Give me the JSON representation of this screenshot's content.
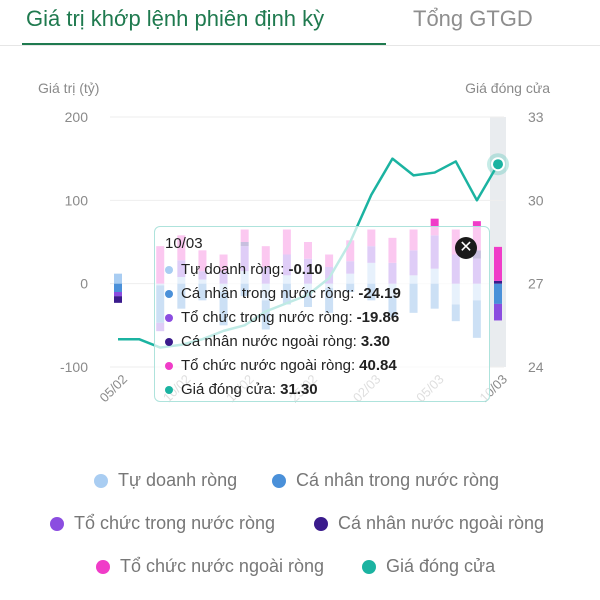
{
  "tabs": [
    {
      "label": "Giá trị khớp lệnh phiên định kỳ",
      "active": true
    },
    {
      "label": "Tổng GTGD",
      "active": false
    }
  ],
  "chart_data": {
    "type": "bar",
    "left_axis_label": "Giá trị (tỷ)",
    "right_axis_label": "Giá đóng cửa",
    "left_ylim": [
      -100,
      200
    ],
    "left_ticks": [
      -100,
      0,
      100,
      200
    ],
    "right_ylim": [
      24,
      33
    ],
    "right_ticks": [
      24,
      27,
      30,
      33
    ],
    "x_tick_labels": [
      "05/02",
      "10/02",
      "13/02",
      "25/02",
      "02/03",
      "05/03",
      "10/03"
    ],
    "x_tick_index": [
      0,
      3,
      6,
      9,
      12,
      15,
      18
    ],
    "n_points": 19,
    "highlight_index": 18,
    "series": [
      {
        "name": "Tự doanh ròng",
        "color": "#a9cdf2",
        "values": [
          12,
          0,
          -2,
          8,
          5,
          -10,
          15,
          -20,
          10,
          -8,
          -5,
          12,
          25,
          -15,
          10,
          18,
          -25,
          -20,
          -0.1
        ]
      },
      {
        "name": "Cá nhân trong nước ròng",
        "color": "#4a90d9",
        "values": [
          -10,
          0,
          -45,
          -30,
          -20,
          -40,
          -15,
          -35,
          -25,
          -20,
          -30,
          -10,
          -20,
          -25,
          -35,
          -30,
          -20,
          -45,
          -24.19
        ]
      },
      {
        "name": "Tổ chức trong nước ròng",
        "color": "#8b4de0",
        "values": [
          -5,
          0,
          -10,
          20,
          10,
          15,
          30,
          20,
          25,
          30,
          20,
          15,
          20,
          25,
          30,
          40,
          35,
          30,
          -19.86
        ]
      },
      {
        "name": "Cá nhân nước ngoài ròng",
        "color": "#3a1b8c",
        "values": [
          -8,
          0,
          0,
          0,
          0,
          0,
          5,
          0,
          0,
          0,
          0,
          0,
          0,
          0,
          0,
          0,
          0,
          10,
          3.3
        ]
      },
      {
        "name": "Tổ chức nước ngoài ròng",
        "color": "#f03cc8",
        "values": [
          0,
          0,
          45,
          30,
          25,
          20,
          15,
          25,
          30,
          20,
          15,
          25,
          20,
          30,
          25,
          20,
          30,
          35,
          40.84
        ]
      }
    ],
    "line": {
      "name": "Giá đóng cửa",
      "color": "#1bb3a1",
      "values": [
        25.0,
        25.0,
        24.7,
        24.8,
        25.0,
        25.3,
        25.5,
        26.0,
        26.3,
        26.6,
        27.2,
        28.5,
        30.2,
        31.5,
        30.9,
        31.0,
        31.4,
        30.0,
        31.3
      ]
    },
    "legend": [
      {
        "label": "Tự doanh ròng",
        "color": "#a9cdf2"
      },
      {
        "label": "Cá nhân trong nước ròng",
        "color": "#4a90d9"
      },
      {
        "label": "Tổ chức trong nước ròng",
        "color": "#8b4de0"
      },
      {
        "label": "Cá nhân nước ngoài ròng",
        "color": "#3a1b8c"
      },
      {
        "label": "Tổ chức nước ngoài ròng",
        "color": "#f03cc8"
      },
      {
        "label": "Giá đóng cửa",
        "color": "#1bb3a1"
      }
    ]
  },
  "tooltip": {
    "date": "10/03",
    "rows": [
      {
        "label": "Tự doanh ròng:",
        "value": "-0.10",
        "color": "#a9cdf2"
      },
      {
        "label": "Cá nhân trong nước ròng:",
        "value": "-24.19",
        "color": "#4a90d9"
      },
      {
        "label": "Tổ chức trong nước ròng:",
        "value": "-19.86",
        "color": "#8b4de0"
      },
      {
        "label": "Cá nhân nước ngoài ròng:",
        "value": "3.30",
        "color": "#3a1b8c"
      },
      {
        "label": "Tổ chức nước ngoài ròng:",
        "value": "40.84",
        "color": "#f03cc8"
      },
      {
        "label": "Giá đóng cửa:",
        "value": "31.30",
        "color": "#1bb3a1"
      }
    ],
    "close_icon": "close-icon"
  }
}
